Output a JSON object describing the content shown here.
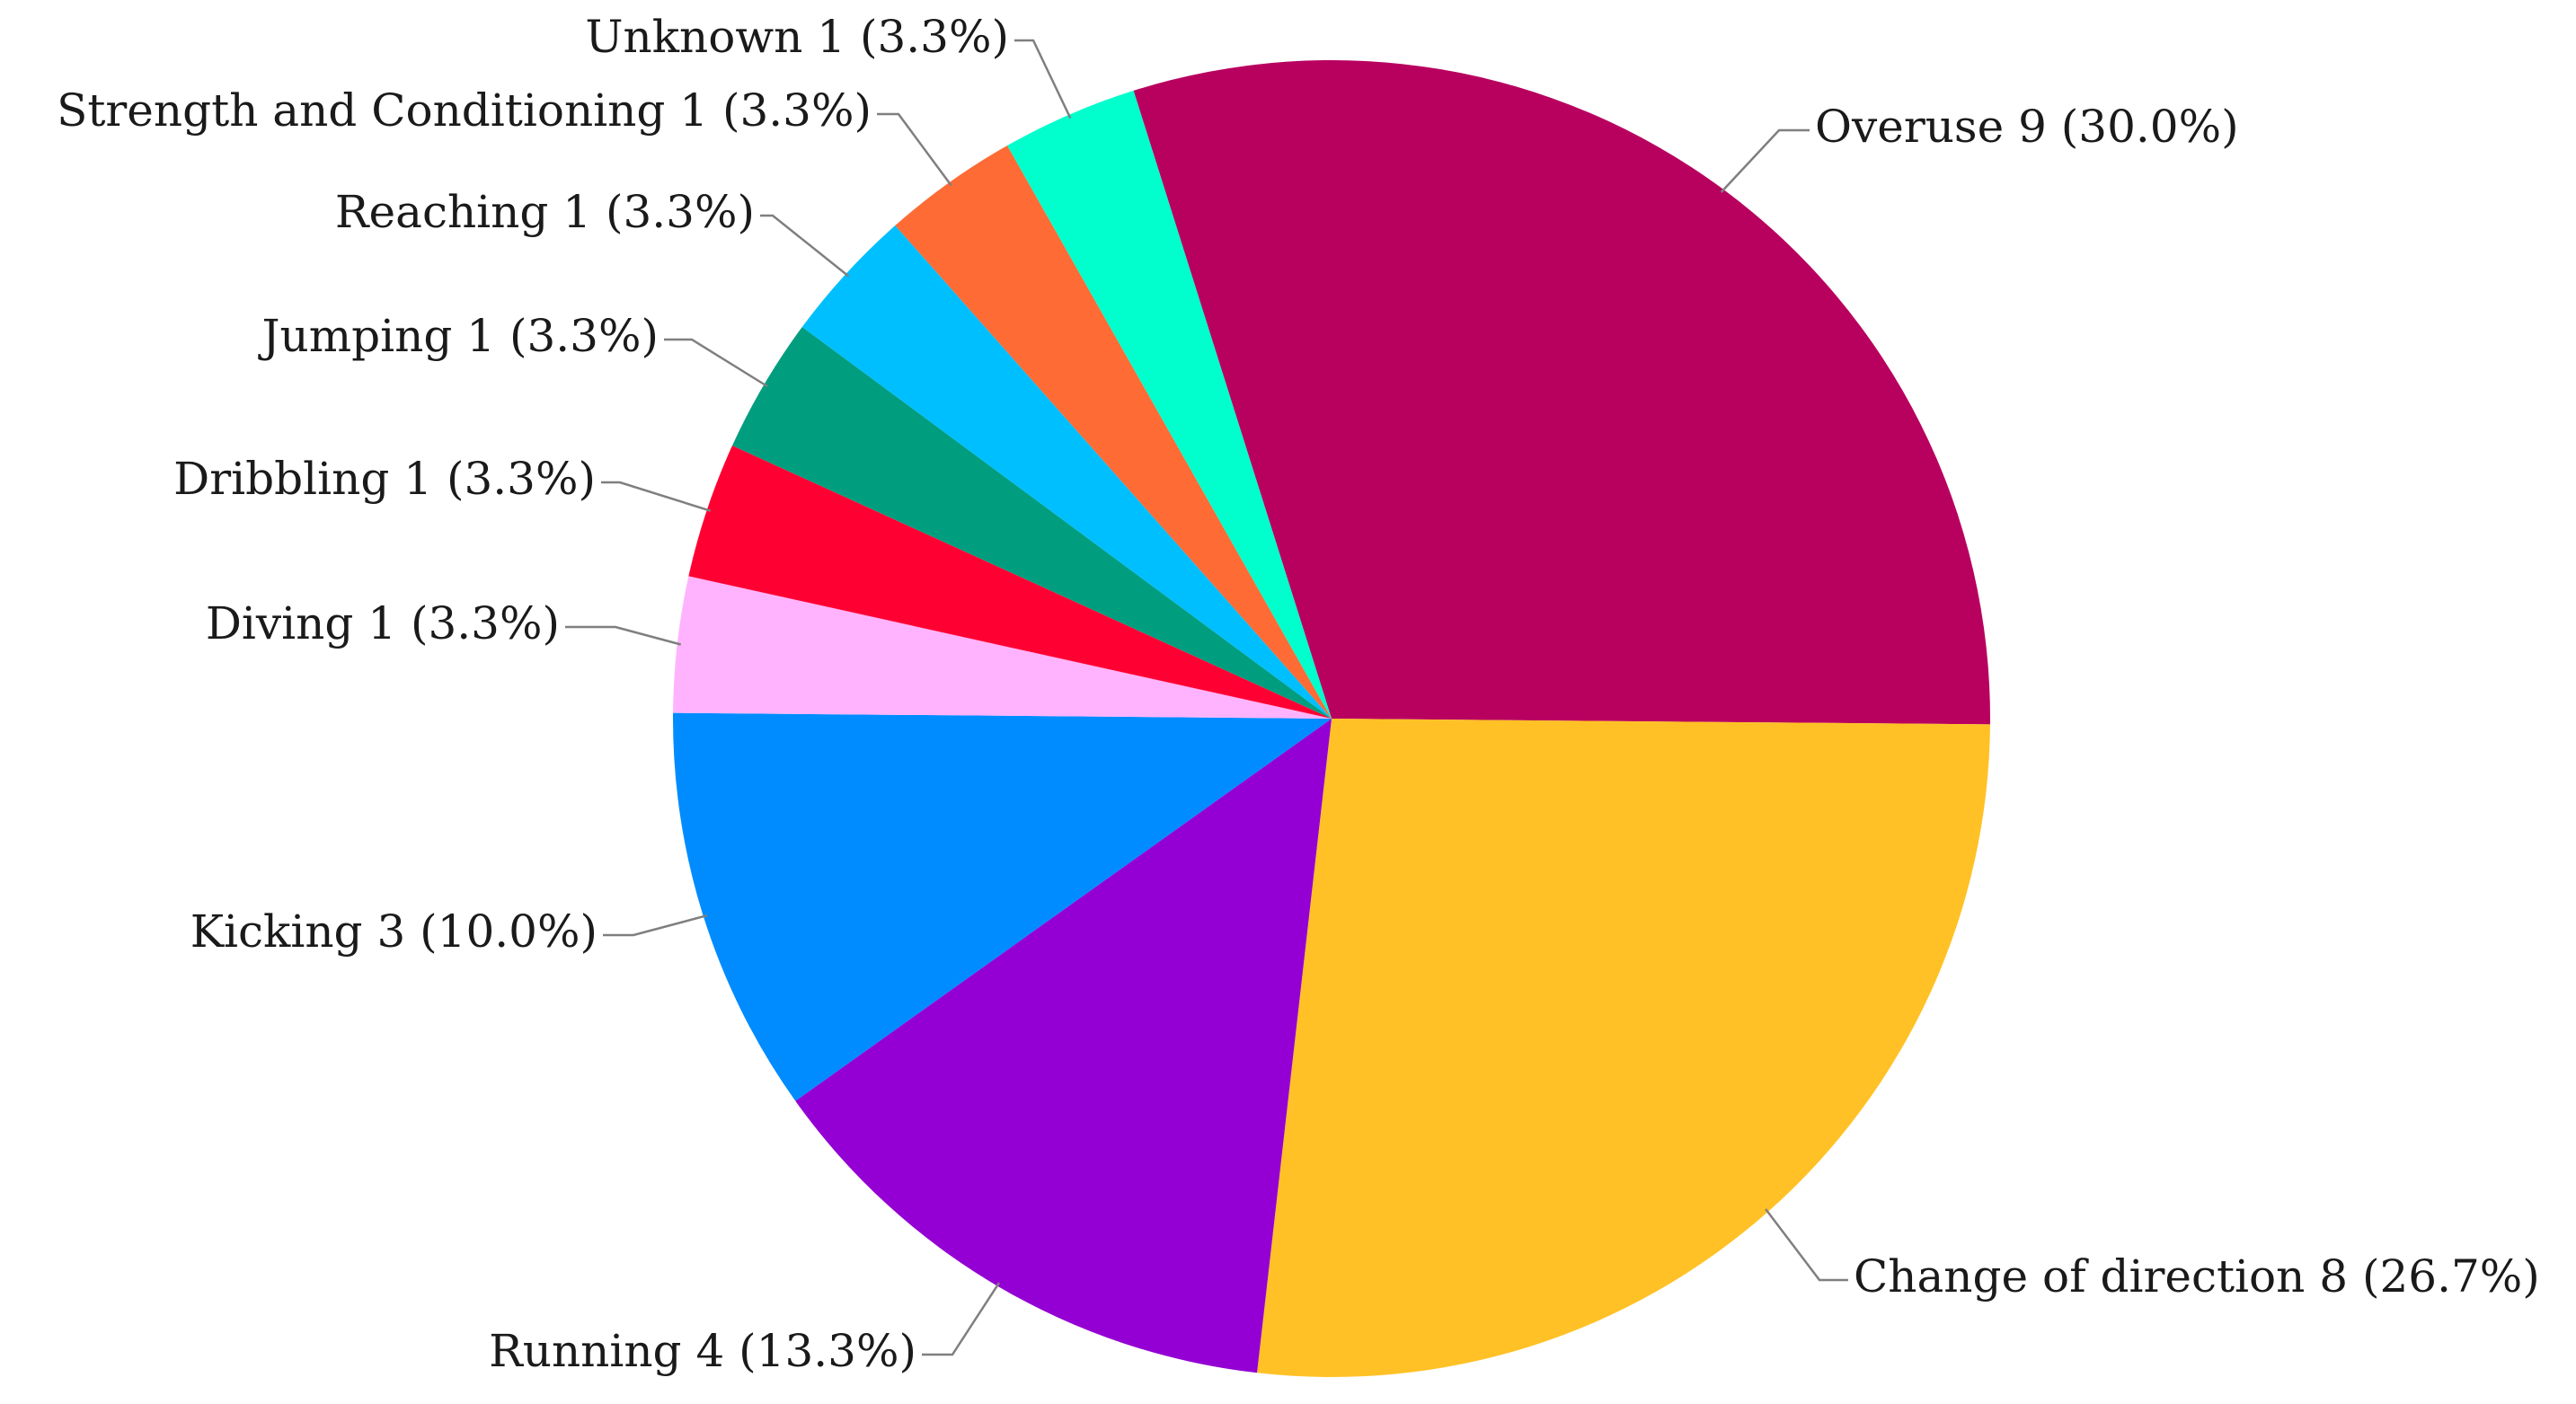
{
  "chart_data": {
    "type": "pie",
    "title": "",
    "slices": [
      {
        "label": "Overuse 9 (30.0%)",
        "category": "Overuse",
        "value": 9,
        "percent": 30.0,
        "color": "#B8005F"
      },
      {
        "label": "Change of direction 8 (26.7%)",
        "category": "Change of direction",
        "value": 8,
        "percent": 26.7,
        "color": "#FFC125"
      },
      {
        "label": "Running 4 (13.3%)",
        "category": "Running",
        "value": 4,
        "percent": 13.3,
        "color": "#9400D3"
      },
      {
        "label": "Kicking 3 (10.0%)",
        "category": "Kicking",
        "value": 3,
        "percent": 10.0,
        "color": "#008CFF"
      },
      {
        "label": "Diving 1 (3.3%)",
        "category": "Diving",
        "value": 1,
        "percent": 3.3,
        "color": "#FFB3FF"
      },
      {
        "label": "Dribbling 1 (3.3%)",
        "category": "Dribbling",
        "value": 1,
        "percent": 3.3,
        "color": "#FF0033"
      },
      {
        "label": "Jumping 1 (3.3%)",
        "category": "Jumping",
        "value": 1,
        "percent": 3.3,
        "color": "#009E7F"
      },
      {
        "label": "Reaching 1 (3.3%)",
        "category": "Reaching",
        "value": 1,
        "percent": 3.3,
        "color": "#00BFFF"
      },
      {
        "label": "Strength and Conditioning 1 (3.3%)",
        "category": "Strength and Conditioning",
        "value": 1,
        "percent": 3.3,
        "color": "#FF6B35"
      },
      {
        "label": "Unknown 1 (3.3%)",
        "category": "Unknown",
        "value": 1,
        "percent": 3.3,
        "color": "#00FFCC"
      }
    ],
    "total": 30,
    "legend": "none",
    "labels": "outside with leader lines"
  }
}
